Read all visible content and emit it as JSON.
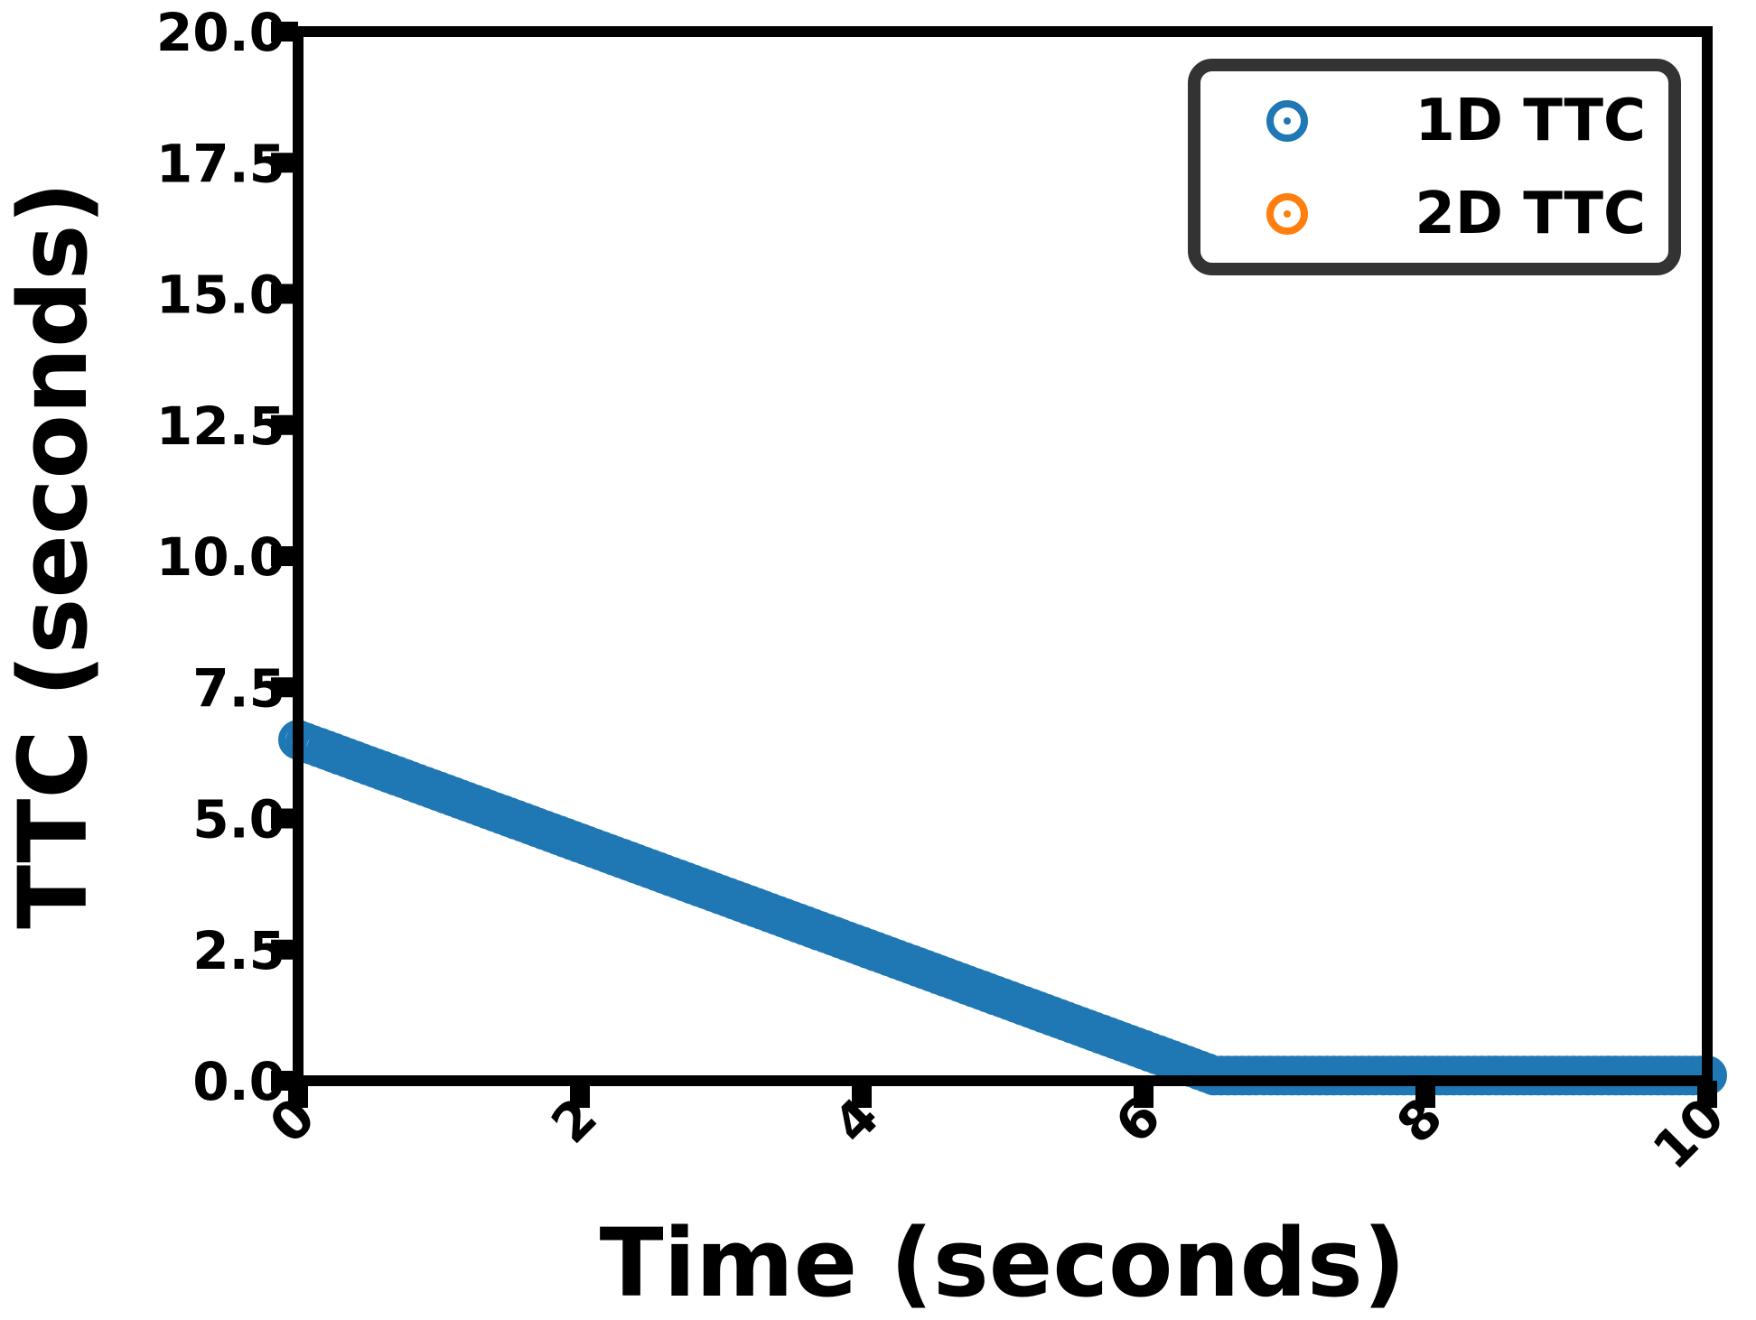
{
  "chart_data": {
    "type": "scatter",
    "title": "",
    "xlabel": "Time (seconds)",
    "ylabel": "TTC (seconds)",
    "xlim": [
      0,
      10
    ],
    "ylim": [
      0,
      20
    ],
    "x_ticks": [
      "0",
      "2",
      "4",
      "6",
      "8",
      "10"
    ],
    "y_ticks": [
      "0.0",
      "2.5",
      "5.0",
      "7.5",
      "10.0",
      "12.5",
      "15.0",
      "17.5",
      "20.0"
    ],
    "grid": false,
    "legend_position": "top-right",
    "series": [
      {
        "name": "1D TTC",
        "color": "#1f77b4",
        "marker": "circle-hollow",
        "segments": [
          {
            "x_start": 0.0,
            "x_end": 6.5,
            "y_start": 6.5,
            "y_end": 0.1
          },
          {
            "x_start": 6.5,
            "x_end": 10.0,
            "y_start": 0.1,
            "y_end": 0.1
          }
        ],
        "step": 0.05
      },
      {
        "name": "2D TTC",
        "color": "#ff7f0e",
        "marker": "circle-hollow",
        "segments": [],
        "step": 0.05
      }
    ]
  }
}
